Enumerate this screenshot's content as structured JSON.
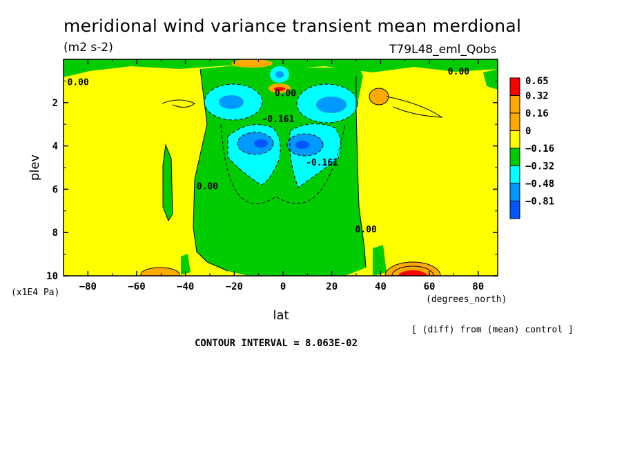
{
  "chart_data": {
    "type": "heatmap",
    "title": "meridional wind variance transient mean merdional",
    "units": "(m2 s-2)",
    "run_label": "T79L48_eml_Qobs",
    "xlabel": "lat",
    "xunits": "(degrees_north)",
    "ylabel": "plev",
    "yunits": "(x1E4 Pa)",
    "note": "[ (diff) from (mean) control ]",
    "contour_interval": "CONTOUR INTERVAL = 8.063E-02",
    "xlim": [
      -90,
      88
    ],
    "ylim": [
      10,
      0
    ],
    "x_ticks": [
      -80,
      -60,
      -40,
      -20,
      0,
      20,
      40,
      60,
      80
    ],
    "x_tick_labels": [
      "−80",
      "−60",
      "−40",
      "−20",
      "0",
      "20",
      "40",
      "60",
      "80"
    ],
    "y_ticks": [
      2,
      4,
      6,
      8,
      10
    ],
    "y_tick_labels": [
      "2",
      "4",
      "6",
      "8",
      "10"
    ],
    "colorbar": {
      "levels": [
        "0.65",
        "0.32",
        "0.16",
        "0",
        "−0.16",
        "−0.32",
        "−0.48",
        "−0.81"
      ],
      "colors": [
        "#ff0000",
        "#ffaa00",
        "#ffaa00",
        "#ffff00",
        "#00cc00",
        "#00ffff",
        "#0099ff",
        "#0055ff"
      ]
    },
    "contour_labels": [
      {
        "text": "0.00",
        "lat": -84,
        "plev": 1.2
      },
      {
        "text": "0.00",
        "lat": 72,
        "plev": 0.7
      },
      {
        "text": "0.00",
        "lat": 1,
        "plev": 1.7
      },
      {
        "text": "-0.161",
        "lat": -2,
        "plev": 2.9
      },
      {
        "text": "-0.161",
        "lat": 16,
        "plev": 4.9
      },
      {
        "text": "0.00",
        "lat": -31,
        "plev": 6.0
      },
      {
        "text": "0.00",
        "lat": 34,
        "plev": 8.0
      }
    ],
    "regions": [
      {
        "value": "-0.16 to 0",
        "desc": "green band",
        "lat_range": [
          -38,
          34
        ],
        "plev_range": [
          0.5,
          10
        ]
      },
      {
        "value": "-0.48 to -0.32",
        "desc": "blue core",
        "lat": -8,
        "plev": 3.9
      },
      {
        "value": "-0.48 to -0.32",
        "desc": "blue core",
        "lat": 9,
        "plev": 3.9
      },
      {
        "value": "-0.32 to -0.16",
        "desc": "cyan lobe",
        "lat": -18,
        "plev": 2.0
      },
      {
        "value": "-0.32 to -0.16",
        "desc": "cyan lobe",
        "lat": 20,
        "plev": 2.0
      },
      {
        "value": "0.65",
        "desc": "red maximum",
        "lat": 51,
        "plev": 9.9
      },
      {
        "value": "0.16 to 0.32",
        "desc": "orange patch",
        "lat": -48,
        "plev": 9.8
      },
      {
        "value": "0.16 to 0.32",
        "desc": "orange patch",
        "lat": 40,
        "plev": 1.8
      }
    ]
  }
}
